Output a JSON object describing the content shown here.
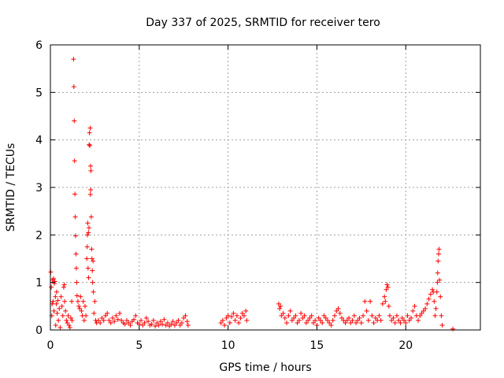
{
  "chart_data": {
    "type": "scatter",
    "title": "Day 337 of 2025, SRMTID for receiver tero",
    "xlabel": "GPS time / hours",
    "ylabel": "SRMTID / TECUs",
    "xlim": [
      0,
      24.2
    ],
    "ylim": [
      0,
      6
    ],
    "xticks": [
      0,
      5,
      10,
      15,
      20
    ],
    "yticks": [
      0,
      1,
      2,
      3,
      4,
      5,
      6
    ],
    "xtick_labels": [
      "0",
      "5",
      "10",
      "15",
      "20"
    ],
    "ytick_labels": [
      "0",
      "1",
      "2",
      "3",
      "4",
      "5",
      "6"
    ],
    "grid": true,
    "marker": "+",
    "color": "#ff0000",
    "series": [
      {
        "name": "SRMTID",
        "points": [
          [
            0.02,
            1.22
          ],
          [
            0.05,
            0.9
          ],
          [
            0.08,
            0.3
          ],
          [
            0.1,
            0.55
          ],
          [
            0.12,
            1.05
          ],
          [
            0.15,
            0.6
          ],
          [
            0.18,
            1.08
          ],
          [
            0.2,
            0.4
          ],
          [
            0.22,
            0.98
          ],
          [
            0.25,
            1.02
          ],
          [
            0.28,
            0.7
          ],
          [
            0.3,
            0.1
          ],
          [
            0.33,
            0.55
          ],
          [
            0.35,
            0.8
          ],
          [
            0.38,
            0.35
          ],
          [
            0.42,
            0.62
          ],
          [
            0.45,
            0.2
          ],
          [
            0.5,
            0.45
          ],
          [
            0.55,
            0.05
          ],
          [
            0.6,
            0.7
          ],
          [
            0.65,
            0.5
          ],
          [
            0.7,
            0.3
          ],
          [
            0.75,
            0.9
          ],
          [
            0.78,
            0.95
          ],
          [
            0.8,
            0.6
          ],
          [
            0.85,
            0.4
          ],
          [
            0.9,
            0.2
          ],
          [
            0.95,
            0.15
          ],
          [
            1.0,
            0.3
          ],
          [
            1.05,
            0.1
          ],
          [
            1.1,
            0.05
          ],
          [
            1.15,
            0.25
          ],
          [
            1.2,
            0.6
          ],
          [
            1.22,
            0.2
          ],
          [
            1.3,
            5.7
          ],
          [
            1.32,
            5.12
          ],
          [
            1.34,
            4.4
          ],
          [
            1.36,
            3.56
          ],
          [
            1.38,
            2.86
          ],
          [
            1.4,
            2.38
          ],
          [
            1.42,
            1.98
          ],
          [
            1.44,
            1.6
          ],
          [
            1.46,
            1.3
          ],
          [
            1.48,
            1.0
          ],
          [
            1.5,
            0.72
          ],
          [
            1.55,
            0.6
          ],
          [
            1.6,
            0.5
          ],
          [
            1.65,
            0.45
          ],
          [
            1.7,
            0.7
          ],
          [
            1.75,
            0.4
          ],
          [
            1.8,
            0.3
          ],
          [
            1.85,
            0.6
          ],
          [
            1.9,
            0.2
          ],
          [
            1.95,
            0.5
          ],
          [
            2.0,
            0.3
          ],
          [
            2.05,
            1.5
          ],
          [
            2.07,
            1.75
          ],
          [
            2.08,
            2.0
          ],
          [
            2.1,
            2.25
          ],
          [
            2.12,
            1.3
          ],
          [
            2.14,
            2.05
          ],
          [
            2.15,
            1.1
          ],
          [
            2.17,
            2.15
          ],
          [
            2.18,
            3.9
          ],
          [
            2.2,
            4.15
          ],
          [
            2.22,
            3.88
          ],
          [
            2.24,
            4.25
          ],
          [
            2.25,
            2.85
          ],
          [
            2.26,
            3.45
          ],
          [
            2.27,
            2.95
          ],
          [
            2.28,
            3.35
          ],
          [
            2.3,
            2.38
          ],
          [
            2.32,
            1.7
          ],
          [
            2.34,
            1.5
          ],
          [
            2.36,
            1.25
          ],
          [
            2.38,
            1.0
          ],
          [
            2.4,
            1.45
          ],
          [
            2.42,
            0.8
          ],
          [
            2.45,
            0.35
          ],
          [
            2.5,
            0.6
          ],
          [
            2.55,
            0.2
          ],
          [
            2.6,
            0.15
          ],
          [
            2.7,
            0.2
          ],
          [
            2.8,
            0.15
          ],
          [
            2.9,
            0.25
          ],
          [
            3.0,
            0.2
          ],
          [
            3.1,
            0.3
          ],
          [
            3.2,
            0.35
          ],
          [
            3.3,
            0.2
          ],
          [
            3.4,
            0.15
          ],
          [
            3.5,
            0.25
          ],
          [
            3.6,
            0.18
          ],
          [
            3.7,
            0.3
          ],
          [
            3.8,
            0.22
          ],
          [
            3.9,
            0.35
          ],
          [
            4.0,
            0.2
          ],
          [
            4.1,
            0.15
          ],
          [
            4.2,
            0.12
          ],
          [
            4.3,
            0.2
          ],
          [
            4.4,
            0.15
          ],
          [
            4.5,
            0.1
          ],
          [
            4.6,
            0.18
          ],
          [
            4.7,
            0.22
          ],
          [
            4.8,
            0.3
          ],
          [
            4.9,
            0.15
          ],
          [
            5.0,
            0.12
          ],
          [
            5.1,
            0.2
          ],
          [
            5.2,
            0.1
          ],
          [
            5.3,
            0.15
          ],
          [
            5.4,
            0.25
          ],
          [
            5.5,
            0.18
          ],
          [
            5.6,
            0.1
          ],
          [
            5.7,
            0.12
          ],
          [
            5.8,
            0.2
          ],
          [
            5.9,
            0.08
          ],
          [
            6.0,
            0.15
          ],
          [
            6.1,
            0.1
          ],
          [
            6.2,
            0.18
          ],
          [
            6.3,
            0.12
          ],
          [
            6.4,
            0.22
          ],
          [
            6.5,
            0.1
          ],
          [
            6.6,
            0.15
          ],
          [
            6.7,
            0.08
          ],
          [
            6.8,
            0.12
          ],
          [
            6.9,
            0.18
          ],
          [
            7.0,
            0.1
          ],
          [
            7.1,
            0.15
          ],
          [
            7.2,
            0.2
          ],
          [
            7.3,
            0.1
          ],
          [
            7.4,
            0.15
          ],
          [
            7.5,
            0.25
          ],
          [
            7.6,
            0.3
          ],
          [
            7.7,
            0.18
          ],
          [
            7.75,
            0.1
          ],
          [
            9.6,
            0.15
          ],
          [
            9.7,
            0.2
          ],
          [
            9.8,
            0.1
          ],
          [
            9.9,
            0.25
          ],
          [
            10.0,
            0.3
          ],
          [
            10.1,
            0.15
          ],
          [
            10.2,
            0.28
          ],
          [
            10.3,
            0.35
          ],
          [
            10.4,
            0.2
          ],
          [
            10.5,
            0.3
          ],
          [
            10.6,
            0.15
          ],
          [
            10.7,
            0.25
          ],
          [
            10.8,
            0.35
          ],
          [
            10.9,
            0.3
          ],
          [
            11.0,
            0.4
          ],
          [
            11.05,
            0.2
          ],
          [
            12.85,
            0.55
          ],
          [
            12.9,
            0.45
          ],
          [
            12.95,
            0.5
          ],
          [
            13.0,
            0.3
          ],
          [
            13.1,
            0.35
          ],
          [
            13.2,
            0.25
          ],
          [
            13.3,
            0.15
          ],
          [
            13.4,
            0.3
          ],
          [
            13.5,
            0.4
          ],
          [
            13.6,
            0.2
          ],
          [
            13.7,
            0.25
          ],
          [
            13.8,
            0.3
          ],
          [
            13.9,
            0.15
          ],
          [
            14.0,
            0.2
          ],
          [
            14.1,
            0.35
          ],
          [
            14.2,
            0.25
          ],
          [
            14.3,
            0.3
          ],
          [
            14.4,
            0.15
          ],
          [
            14.5,
            0.2
          ],
          [
            14.6,
            0.25
          ],
          [
            14.7,
            0.3
          ],
          [
            14.8,
            0.15
          ],
          [
            14.9,
            0.2
          ],
          [
            15.0,
            0.1
          ],
          [
            15.1,
            0.25
          ],
          [
            15.2,
            0.2
          ],
          [
            15.3,
            0.15
          ],
          [
            15.4,
            0.3
          ],
          [
            15.5,
            0.25
          ],
          [
            15.6,
            0.2
          ],
          [
            15.7,
            0.15
          ],
          [
            15.8,
            0.1
          ],
          [
            15.9,
            0.2
          ],
          [
            16.0,
            0.3
          ],
          [
            16.1,
            0.4
          ],
          [
            16.2,
            0.45
          ],
          [
            16.3,
            0.35
          ],
          [
            16.4,
            0.25
          ],
          [
            16.5,
            0.2
          ],
          [
            16.6,
            0.15
          ],
          [
            16.7,
            0.2
          ],
          [
            16.8,
            0.25
          ],
          [
            16.9,
            0.15
          ],
          [
            17.0,
            0.2
          ],
          [
            17.1,
            0.3
          ],
          [
            17.2,
            0.15
          ],
          [
            17.3,
            0.2
          ],
          [
            17.4,
            0.25
          ],
          [
            17.5,
            0.15
          ],
          [
            17.6,
            0.3
          ],
          [
            17.7,
            0.6
          ],
          [
            17.8,
            0.4
          ],
          [
            17.9,
            0.2
          ],
          [
            18.0,
            0.6
          ],
          [
            18.1,
            0.3
          ],
          [
            18.2,
            0.15
          ],
          [
            18.3,
            0.25
          ],
          [
            18.4,
            0.2
          ],
          [
            18.5,
            0.3
          ],
          [
            18.6,
            0.2
          ],
          [
            18.7,
            0.55
          ],
          [
            18.8,
            0.7
          ],
          [
            18.85,
            0.6
          ],
          [
            18.9,
            0.85
          ],
          [
            18.95,
            0.95
          ],
          [
            19.0,
            0.9
          ],
          [
            19.05,
            0.5
          ],
          [
            19.1,
            0.3
          ],
          [
            19.2,
            0.2
          ],
          [
            19.3,
            0.25
          ],
          [
            19.4,
            0.15
          ],
          [
            19.5,
            0.3
          ],
          [
            19.6,
            0.2
          ],
          [
            19.7,
            0.15
          ],
          [
            19.8,
            0.25
          ],
          [
            19.9,
            0.2
          ],
          [
            20.0,
            0.15
          ],
          [
            20.1,
            0.3
          ],
          [
            20.2,
            0.2
          ],
          [
            20.3,
            0.25
          ],
          [
            20.4,
            0.4
          ],
          [
            20.5,
            0.5
          ],
          [
            20.6,
            0.3
          ],
          [
            20.7,
            0.2
          ],
          [
            20.8,
            0.3
          ],
          [
            20.9,
            0.35
          ],
          [
            21.0,
            0.4
          ],
          [
            21.1,
            0.45
          ],
          [
            21.2,
            0.55
          ],
          [
            21.3,
            0.65
          ],
          [
            21.4,
            0.75
          ],
          [
            21.5,
            0.85
          ],
          [
            21.55,
            0.8
          ],
          [
            21.6,
            0.6
          ],
          [
            21.65,
            0.3
          ],
          [
            21.7,
            0.45
          ],
          [
            21.75,
            0.8
          ],
          [
            21.78,
            1.0
          ],
          [
            21.8,
            1.2
          ],
          [
            21.82,
            1.45
          ],
          [
            21.85,
            1.6
          ],
          [
            21.87,
            1.7
          ],
          [
            21.9,
            1.05
          ],
          [
            21.95,
            0.7
          ],
          [
            22.0,
            0.3
          ],
          [
            22.05,
            0.1
          ],
          [
            22.65,
            0.02
          ]
        ]
      }
    ]
  }
}
